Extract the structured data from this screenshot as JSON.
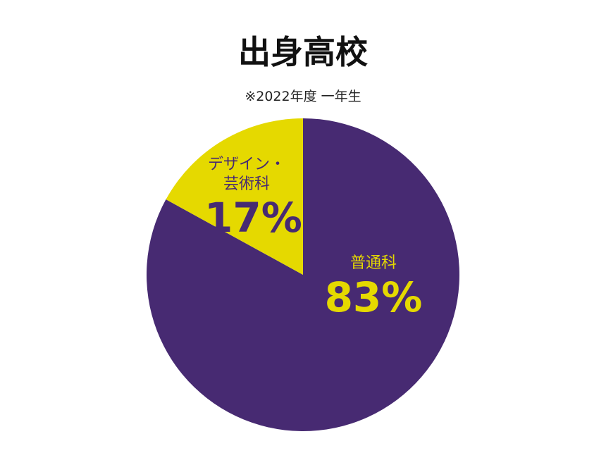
{
  "chart_data": {
    "type": "pie",
    "title": "出身高校",
    "subtitle": "※2022年度 一年生",
    "categories": [
      "普通科",
      "デザイン・芸術科"
    ],
    "values": [
      83,
      17
    ],
    "value_labels": [
      "83%",
      "17%"
    ],
    "colors": [
      "#472a72",
      "#e5d900"
    ],
    "label_colors": [
      "#e5d900",
      "#472a72"
    ]
  }
}
